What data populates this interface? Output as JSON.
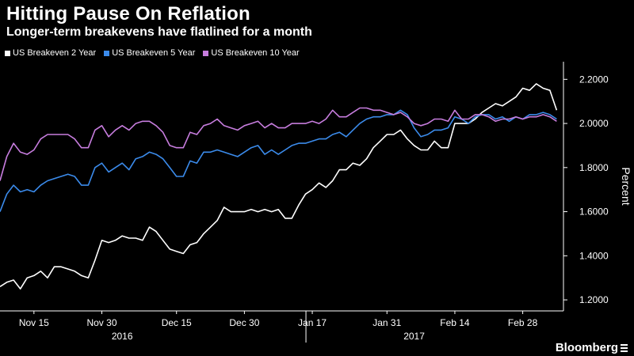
{
  "colors": {
    "background": "#000000",
    "us2y": "#ffffff",
    "us5y": "#3b8beb",
    "us10y": "#c77dde"
  },
  "logo": {
    "text": "Bloomberg",
    "icon": "bloomberg-terminal-icon"
  },
  "chart_data": {
    "type": "line",
    "title": "Hitting Pause On Reflation",
    "subtitle": "Longer-term breakevens have flatlined for a month",
    "ylabel": "Percent",
    "xlabel": "",
    "ylim": [
      1.15,
      2.28
    ],
    "yticks": [
      {
        "value": 1.2,
        "label": "1.2000"
      },
      {
        "value": 1.4,
        "label": "1.4000"
      },
      {
        "value": 1.6,
        "label": "1.6000"
      },
      {
        "value": 1.8,
        "label": "1.8000"
      },
      {
        "value": 2.0,
        "label": "2.0000"
      },
      {
        "value": 2.2,
        "label": "2.2000"
      }
    ],
    "xrange": [
      0,
      83
    ],
    "xticks": [
      {
        "index": 5,
        "label": "Nov 15"
      },
      {
        "index": 15,
        "label": "Nov 30"
      },
      {
        "index": 26,
        "label": "Dec 15"
      },
      {
        "index": 36,
        "label": "Dec 30"
      },
      {
        "index": 46,
        "label": "Jan 17"
      },
      {
        "index": 57,
        "label": "Jan 31"
      },
      {
        "index": 67,
        "label": "Feb 14"
      },
      {
        "index": 77,
        "label": "Feb 28"
      }
    ],
    "year_labels": [
      {
        "index": 18,
        "label": "2016"
      },
      {
        "index": 61,
        "label": "2017"
      }
    ],
    "year_divider_index": 46,
    "legend_position": "top-left",
    "series": [
      {
        "name": "US Breakeven 2 Year",
        "color": "#ffffff",
        "values": [
          1.26,
          1.28,
          1.29,
          1.25,
          1.3,
          1.31,
          1.33,
          1.3,
          1.35,
          1.35,
          1.34,
          1.33,
          1.31,
          1.3,
          1.38,
          1.47,
          1.46,
          1.47,
          1.49,
          1.48,
          1.48,
          1.47,
          1.53,
          1.51,
          1.47,
          1.43,
          1.42,
          1.41,
          1.45,
          1.46,
          1.5,
          1.53,
          1.56,
          1.62,
          1.6,
          1.6,
          1.6,
          1.61,
          1.6,
          1.61,
          1.6,
          1.61,
          1.57,
          1.57,
          1.63,
          1.68,
          1.7,
          1.73,
          1.71,
          1.74,
          1.79,
          1.79,
          1.82,
          1.81,
          1.84,
          1.89,
          1.92,
          1.95,
          1.95,
          1.97,
          1.93,
          1.9,
          1.88,
          1.88,
          1.92,
          1.89,
          1.89,
          2.0,
          2.0,
          2.0,
          2.02,
          2.05,
          2.07,
          2.09,
          2.08,
          2.1,
          2.12,
          2.16,
          2.15,
          2.18,
          2.16,
          2.15,
          2.06
        ]
      },
      {
        "name": "US Breakeven 5 Year",
        "color": "#3b8beb",
        "values": [
          1.6,
          1.68,
          1.72,
          1.69,
          1.7,
          1.69,
          1.72,
          1.74,
          1.75,
          1.76,
          1.77,
          1.76,
          1.72,
          1.72,
          1.8,
          1.82,
          1.78,
          1.8,
          1.82,
          1.79,
          1.84,
          1.85,
          1.87,
          1.86,
          1.84,
          1.8,
          1.76,
          1.76,
          1.83,
          1.82,
          1.87,
          1.87,
          1.88,
          1.87,
          1.86,
          1.85,
          1.87,
          1.89,
          1.9,
          1.86,
          1.88,
          1.86,
          1.88,
          1.9,
          1.91,
          1.91,
          1.92,
          1.93,
          1.93,
          1.95,
          1.96,
          1.94,
          1.97,
          2.0,
          2.02,
          2.03,
          2.03,
          2.04,
          2.04,
          2.06,
          2.04,
          1.98,
          1.94,
          1.95,
          1.97,
          1.97,
          1.98,
          2.03,
          2.02,
          2.0,
          2.03,
          2.04,
          2.04,
          2.02,
          2.03,
          2.01,
          2.03,
          2.02,
          2.04,
          2.04,
          2.05,
          2.04,
          2.02
        ]
      },
      {
        "name": "US Breakeven 10 Year",
        "color": "#c77dde",
        "values": [
          1.74,
          1.85,
          1.91,
          1.87,
          1.86,
          1.88,
          1.93,
          1.95,
          1.95,
          1.95,
          1.95,
          1.93,
          1.89,
          1.89,
          1.97,
          1.99,
          1.94,
          1.97,
          1.99,
          1.97,
          2.0,
          2.01,
          2.01,
          1.99,
          1.96,
          1.9,
          1.89,
          1.89,
          1.96,
          1.95,
          1.99,
          2.0,
          2.02,
          1.99,
          1.98,
          1.97,
          1.99,
          2.0,
          2.01,
          1.98,
          2.0,
          1.98,
          1.98,
          2.0,
          2.0,
          2.0,
          2.01,
          2.0,
          2.02,
          2.06,
          2.03,
          2.03,
          2.05,
          2.07,
          2.07,
          2.06,
          2.06,
          2.05,
          2.04,
          2.05,
          2.03,
          2.0,
          1.99,
          2.0,
          2.02,
          2.02,
          2.01,
          2.06,
          2.02,
          2.02,
          2.04,
          2.04,
          2.03,
          2.01,
          2.02,
          2.02,
          2.03,
          2.02,
          2.03,
          2.03,
          2.04,
          2.03,
          2.01
        ]
      }
    ]
  }
}
